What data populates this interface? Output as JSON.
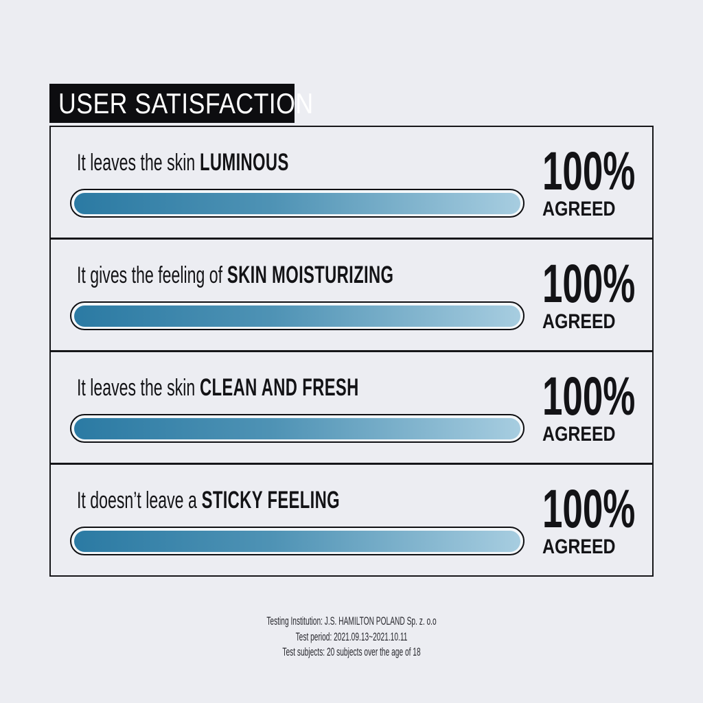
{
  "page": {
    "background": "#ECEDF2",
    "text_color": "#131316"
  },
  "header": {
    "title": "USER SATISFACTION",
    "bg": "#0D0D10",
    "color": "#FFFFFF"
  },
  "chart_data": {
    "type": "bar",
    "orientation": "horizontal",
    "title": "USER SATISFACTION",
    "categories": [
      "It leaves the skin LUMINOUS",
      "It gives the feeling of SKIN MOISTURIZING",
      "It leaves the skin CLEAN AND FRESH",
      "It doesn’t leave a STICKY FEELING"
    ],
    "values": [
      100,
      100,
      100,
      100
    ],
    "unit": "%",
    "value_label": "AGREED",
    "xlim": [
      0,
      100
    ],
    "bar_gradient": [
      "#2B7AA3",
      "#4F93B5",
      "#A7CDE0"
    ],
    "bar_outline": "#0F0F12"
  },
  "rows": [
    {
      "prefix": "It leaves the skin",
      "highlight": "LUMINOUS",
      "value": 100,
      "percent": "100%",
      "agreed": "AGREED"
    },
    {
      "prefix": "It gives the feeling of",
      "highlight": "SKIN MOISTURIZING",
      "value": 100,
      "percent": "100%",
      "agreed": "AGREED"
    },
    {
      "prefix": "It leaves the skin",
      "highlight": "CLEAN AND FRESH",
      "value": 100,
      "percent": "100%",
      "agreed": "AGREED"
    },
    {
      "prefix": "It doesn’t leave a",
      "highlight": "STICKY FEELING",
      "value": 100,
      "percent": "100%",
      "agreed": "AGREED"
    }
  ],
  "footer": {
    "lines": [
      "Testing Institution: J.S. HAMILTON POLAND Sp. z. o.o",
      "Test period: 2021.09.13~2021.10.11",
      "Test subjects: 20 subjects over the age of 18"
    ]
  }
}
